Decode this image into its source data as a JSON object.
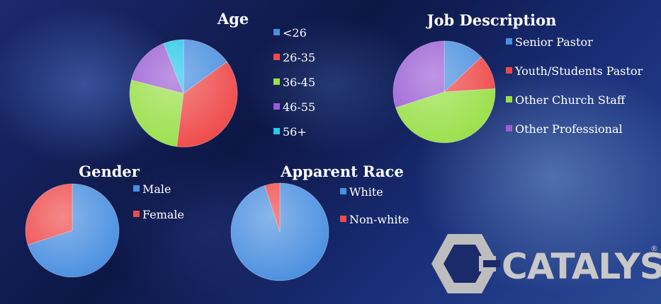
{
  "logo": {
    "text": "CATALYST",
    "mark": "®"
  },
  "chart_data": [
    {
      "type": "pie",
      "title": "Age",
      "categories": [
        "<26",
        "26-35",
        "36-45",
        "46-55",
        "56+"
      ],
      "values": [
        15,
        37,
        27,
        15,
        6
      ],
      "colors": [
        "#4a8fe0",
        "#ef4a4a",
        "#9ae04a",
        "#9b5ed4",
        "#25c8e8"
      ]
    },
    {
      "type": "pie",
      "title": "Job Description",
      "categories": [
        "Senior Pastor",
        "Youth/Students Pastor",
        "Other Church Staff",
        "Other Professional"
      ],
      "values": [
        13,
        11,
        46,
        30
      ],
      "colors": [
        "#4a8fe0",
        "#ef4a4a",
        "#9ae04a",
        "#9b5ed4"
      ]
    },
    {
      "type": "pie",
      "title": "Gender",
      "categories": [
        "Male",
        "Female"
      ],
      "values": [
        70,
        30
      ],
      "colors": [
        "#4a8fe0",
        "#ef4a4a"
      ]
    },
    {
      "type": "pie",
      "title": "Apparent Race",
      "categories": [
        "White",
        "Non-white"
      ],
      "values": [
        95,
        5
      ],
      "colors": [
        "#4a8fe0",
        "#ef4a4a"
      ]
    }
  ]
}
